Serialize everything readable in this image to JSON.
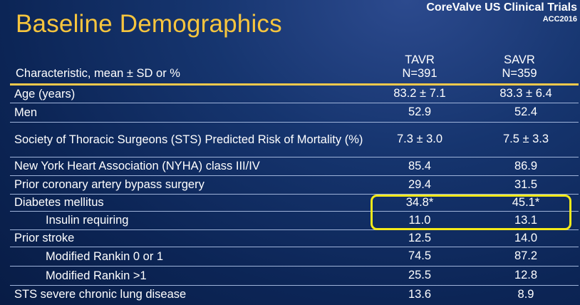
{
  "title": "Baseline Demographics",
  "brand": {
    "line1": "CoreValve US Clinical Trials",
    "line2": "ACC2016"
  },
  "header": {
    "label": "Characteristic, mean ± SD or %",
    "col1": {
      "name": "TAVR",
      "n": "N=391"
    },
    "col2": {
      "name": "SAVR",
      "n": "N=359"
    }
  },
  "rows": [
    {
      "label": "Age (years)",
      "tavr": "83.2 ± 7.1",
      "savr": "83.3 ± 6.4"
    },
    {
      "label": "Men",
      "tavr": "52.9",
      "savr": "52.4"
    },
    {
      "label": "Society of Thoracic Surgeons (STS) Predicted Risk of Mortality (%)",
      "tavr": "7.3 ± 3.0",
      "savr": "7.5 ± 3.3"
    },
    {
      "label": "New York Heart Association (NYHA) class III/IV",
      "tavr": "85.4",
      "savr": "86.9"
    },
    {
      "label": "Prior coronary artery bypass surgery",
      "tavr": "29.4",
      "savr": "31.5"
    },
    {
      "label": "Diabetes mellitus",
      "tavr": "34.8*",
      "savr": "45.1*"
    },
    {
      "label": "Insulin requiring",
      "tavr": "11.0",
      "savr": "13.1"
    },
    {
      "label": "Prior stroke",
      "tavr": "12.5",
      "savr": "14.0"
    },
    {
      "label": "Modified Rankin 0 or 1",
      "tavr": "74.5",
      "savr": "87.2"
    },
    {
      "label": "Modified Rankin >1",
      "tavr": "25.5",
      "savr": "12.8"
    },
    {
      "label": "STS severe chronic lung disease",
      "tavr": "13.6",
      "savr": "8.9"
    }
  ],
  "colors": {
    "title": "#f6c53e",
    "highlight": "#f4ea1a",
    "rule": "#f2c94c",
    "background": "#0e2a5e"
  }
}
